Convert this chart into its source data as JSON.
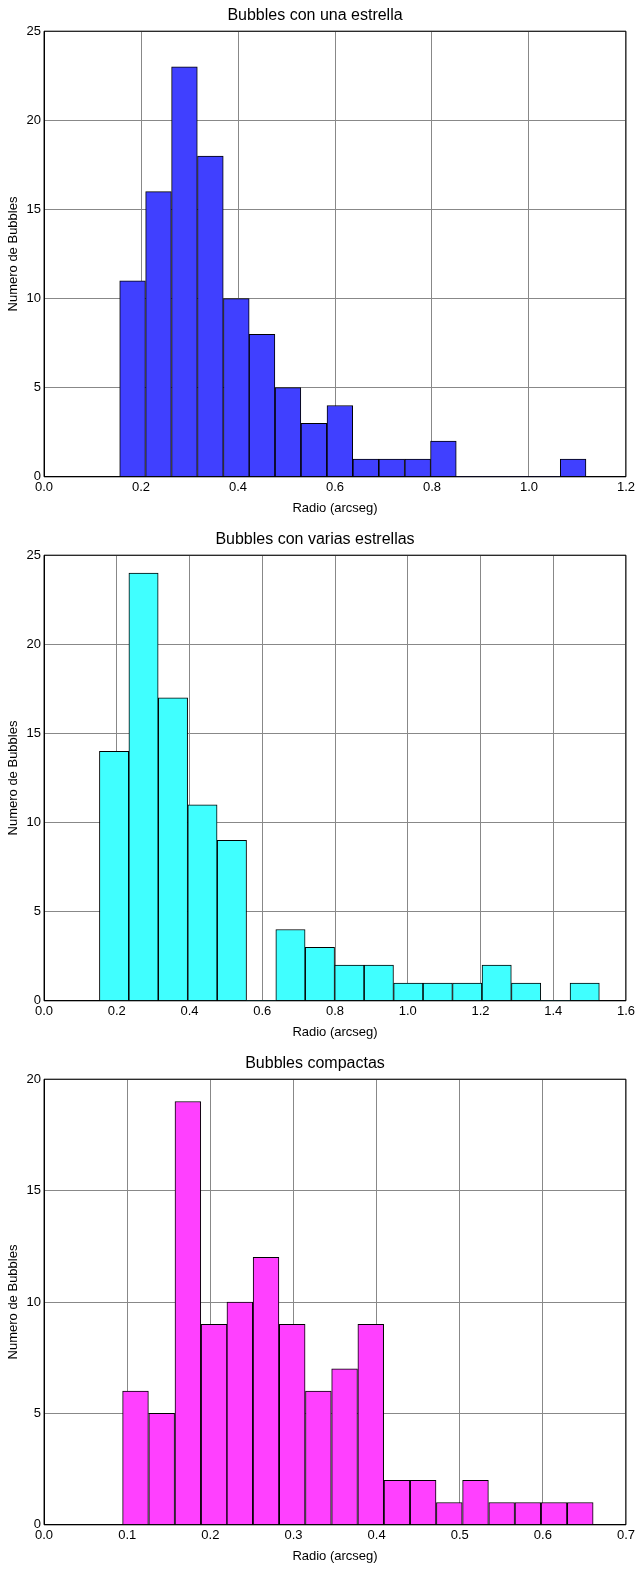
{
  "chart_data": [
    {
      "type": "histogram",
      "title": "Bubbles con una estrella",
      "xlabel": "Radio (arcseg)",
      "ylabel": "Numero de Bubbles",
      "color": "#4040ff",
      "bins": [
        0.156,
        0.209,
        0.263,
        0.316,
        0.37,
        0.423,
        0.476,
        0.53,
        0.583,
        0.637,
        0.69,
        0.744,
        0.797,
        0.85,
        0.904,
        0.957,
        1.011,
        1.064,
        1.118
      ],
      "values": [
        11,
        16,
        23,
        18,
        10,
        8,
        5,
        3,
        4,
        1,
        1,
        1,
        2,
        0,
        0,
        0,
        0,
        1
      ],
      "xlim": [
        0,
        1.2
      ],
      "xticks": [
        {
          "value": 0,
          "label": "0.0"
        },
        {
          "value": 0.2,
          "label": "0.2"
        },
        {
          "value": 0.4,
          "label": "0.4"
        },
        {
          "value": 0.6,
          "label": "0.6"
        },
        {
          "value": 0.8,
          "label": "0.8"
        },
        {
          "value": 1,
          "label": "1.0"
        },
        {
          "value": 1.2,
          "label": "1.2"
        }
      ],
      "ylim": [
        0,
        25
      ],
      "yticks": [
        0,
        5,
        10,
        15,
        20,
        25
      ],
      "grid": true
    },
    {
      "type": "histogram",
      "title": "Bubbles con varias estrellas",
      "xlabel": "Radio (arcseg)",
      "ylabel": "Numero de Bubbles",
      "color": "#40ffff",
      "bins": [
        0.152,
        0.233,
        0.314,
        0.395,
        0.476,
        0.557,
        0.637,
        0.718,
        0.799,
        0.88,
        0.961,
        1.042,
        1.123,
        1.204,
        1.285,
        1.366,
        1.446,
        1.527
      ],
      "values": [
        14,
        24,
        17,
        11,
        9,
        0,
        4,
        3,
        2,
        2,
        1,
        1,
        1,
        2,
        1,
        0,
        1
      ],
      "xlim": [
        0,
        1.6
      ],
      "xticks": [
        {
          "value": 0,
          "label": "0.0"
        },
        {
          "value": 0.2,
          "label": "0.2"
        },
        {
          "value": 0.4,
          "label": "0.4"
        },
        {
          "value": 0.6,
          "label": "0.6"
        },
        {
          "value": 0.8,
          "label": "0.8"
        },
        {
          "value": 1,
          "label": "1.0"
        },
        {
          "value": 1.2,
          "label": "1.2"
        },
        {
          "value": 1.4,
          "label": "1.4"
        },
        {
          "value": 1.6,
          "label": "1.6"
        }
      ],
      "ylim": [
        0,
        25
      ],
      "yticks": [
        0,
        5,
        10,
        15,
        20,
        25
      ],
      "grid": true
    },
    {
      "type": "histogram",
      "title": "Bubbles compactas",
      "xlabel": "Radio (arcseg)",
      "ylabel": "Numero de Bubbles",
      "color": "#ff40ff",
      "bins": [
        0.094,
        0.126,
        0.157,
        0.189,
        0.22,
        0.251,
        0.283,
        0.314,
        0.346,
        0.377,
        0.409,
        0.44,
        0.472,
        0.503,
        0.535,
        0.566,
        0.598,
        0.629,
        0.661
      ],
      "values": [
        6,
        5,
        19,
        9,
        10,
        12,
        9,
        6,
        7,
        9,
        2,
        2,
        1,
        2,
        1,
        1,
        1,
        1
      ],
      "xlim": [
        0,
        0.7
      ],
      "xticks": [
        {
          "value": 0,
          "label": "0.0"
        },
        {
          "value": 0.1,
          "label": "0.1"
        },
        {
          "value": 0.2,
          "label": "0.2"
        },
        {
          "value": 0.3,
          "label": "0.3"
        },
        {
          "value": 0.4,
          "label": "0.4"
        },
        {
          "value": 0.5,
          "label": "0.5"
        },
        {
          "value": 0.6,
          "label": "0.6"
        },
        {
          "value": 0.7,
          "label": "0.7"
        }
      ],
      "ylim": [
        0,
        20
      ],
      "yticks": [
        0,
        5,
        10,
        15,
        20
      ],
      "grid": true
    }
  ]
}
